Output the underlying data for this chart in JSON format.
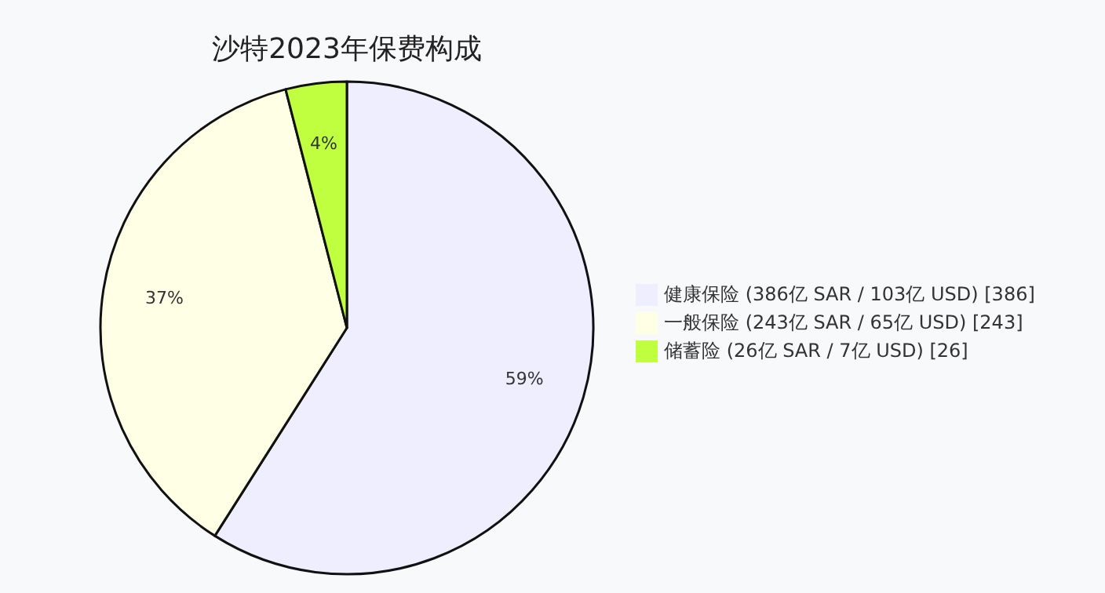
{
  "chart_data": {
    "type": "pie",
    "title": "沙特2023年保费构成",
    "categories": [
      "健康保险 (386亿 SAR / 103亿 USD) [386]",
      "一般保险 (243亿 SAR / 65亿 USD) [243]",
      "储蓄险 (26亿 SAR / 7亿 USD) [26]"
    ],
    "values": [
      59,
      37,
      4
    ],
    "colors": [
      "#eeeeff",
      "#ffffe6",
      "#bfff3f"
    ],
    "value_labels": [
      "59%",
      "37%",
      "4%"
    ],
    "legend": "right"
  }
}
